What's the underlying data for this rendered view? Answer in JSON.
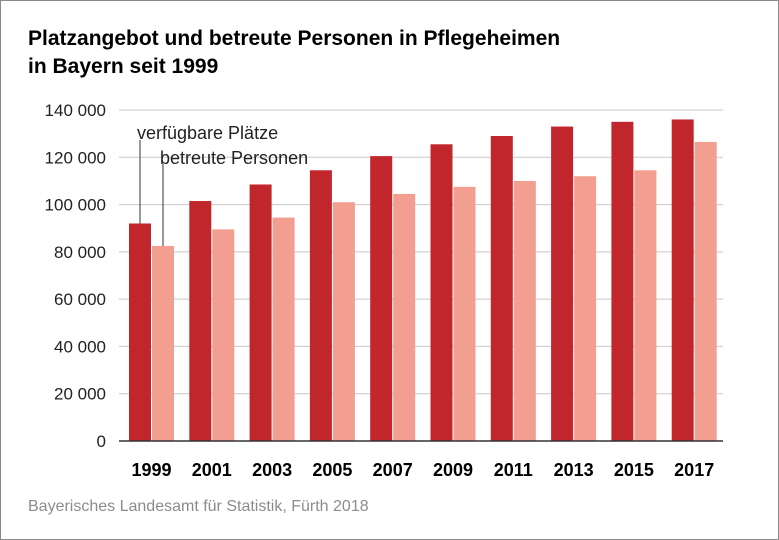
{
  "title_lines": [
    "Platzangebot und betreute Personen in Pflegeheimen",
    "in Bayern seit 1999"
  ],
  "source": "Bayerisches Landesamt für Statistik, Fürth 2018",
  "colors": {
    "series_1": "#c0262b",
    "series_2": "#f29e91",
    "grid": "#c8c8c8",
    "axis": "#333333"
  },
  "chart_data": {
    "type": "bar",
    "title": "Platzangebot und betreute Personen in Pflegeheimen in Bayern seit 1999",
    "categories": [
      "1999",
      "2001",
      "2003",
      "2005",
      "2007",
      "2009",
      "2011",
      "2013",
      "2015",
      "2017"
    ],
    "series": [
      {
        "name": "verfügbare Plätze",
        "values": [
          92000,
          101500,
          108500,
          114500,
          120500,
          125500,
          129000,
          133000,
          135000,
          136000
        ]
      },
      {
        "name": "betreute Personen",
        "values": [
          82500,
          89500,
          94500,
          101000,
          104500,
          107500,
          110000,
          112000,
          114500,
          126500
        ]
      }
    ],
    "ylim": [
      0,
      140000
    ],
    "yticks": [
      0,
      20000,
      40000,
      60000,
      80000,
      100000,
      120000,
      140000
    ],
    "ytick_labels": [
      "0",
      "20 000",
      "40 000",
      "60 000",
      "80 000",
      "100 000",
      "120 000",
      "140 000"
    ],
    "xlabel": "",
    "ylabel": "",
    "grid": true,
    "legend": "direct labels with leader lines on first category"
  }
}
